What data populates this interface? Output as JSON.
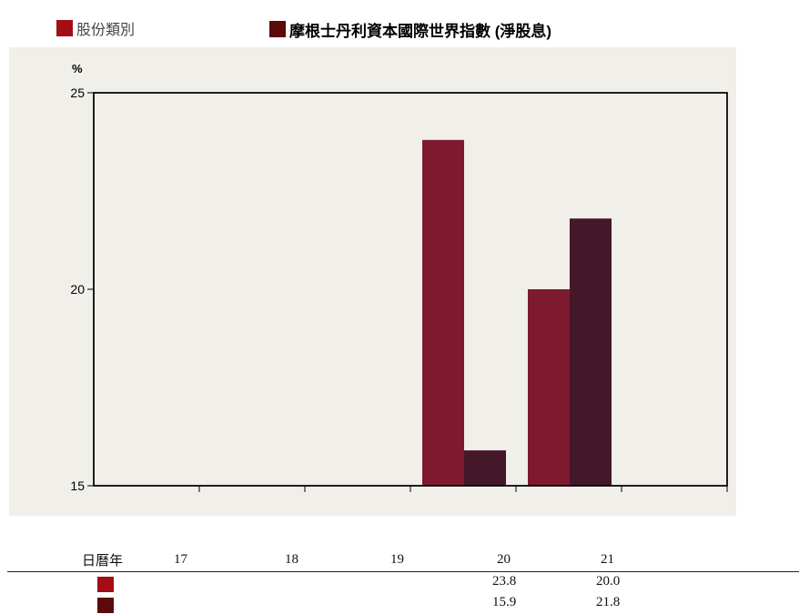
{
  "legend": {
    "series1_label": "股份類別",
    "series2_label": "摩根士丹利資本國際世界指數 (淨股息)"
  },
  "colors": {
    "series1": "#7d1a30",
    "series2": "#451829",
    "series1_swatch": "#a50d14",
    "series2_swatch": "#5c0a0a",
    "panel_bg": "#f0efea"
  },
  "chart_data": {
    "type": "bar",
    "ylabel": "%",
    "ylim": [
      15,
      25
    ],
    "yticks": [
      15,
      20,
      25
    ],
    "categories": [
      "17",
      "18",
      "19",
      "20",
      "21"
    ],
    "series": [
      {
        "name": "股份類別",
        "values": [
          null,
          null,
          null,
          23.8,
          20.0
        ]
      },
      {
        "name": "摩根士丹利資本國際世界指數 (淨股息)",
        "values": [
          null,
          null,
          null,
          15.9,
          21.8
        ]
      }
    ],
    "grid": false,
    "legend_position": "top"
  },
  "table": {
    "header_label": "日曆年",
    "years": [
      "17",
      "18",
      "19",
      "20",
      "21"
    ],
    "rows": [
      {
        "values": [
          "",
          "",
          "",
          "23.8",
          "20.0"
        ]
      },
      {
        "values": [
          "",
          "",
          "",
          "15.9",
          "21.8"
        ]
      }
    ]
  }
}
